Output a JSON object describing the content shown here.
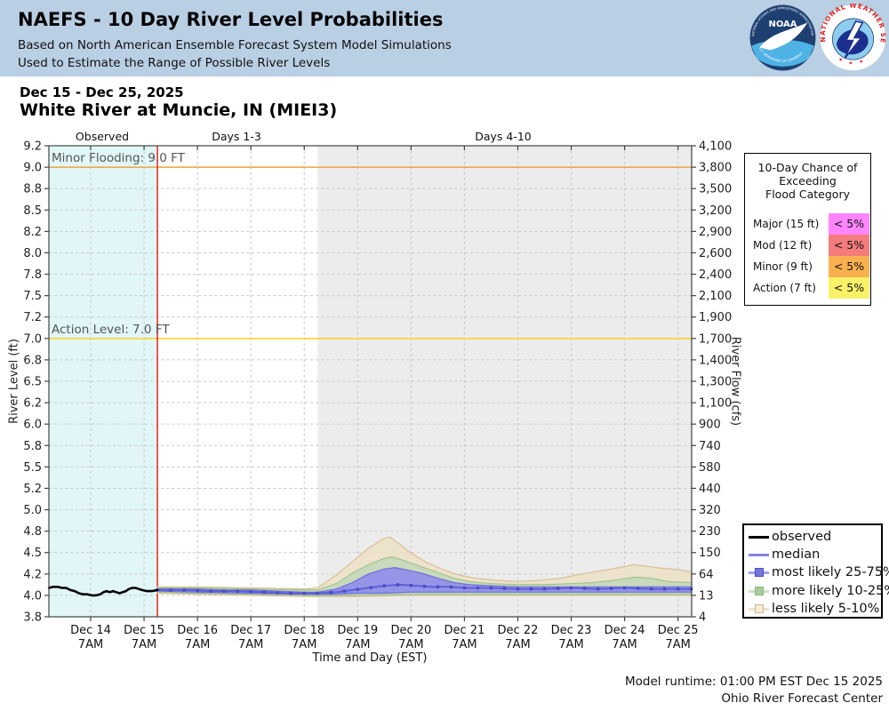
{
  "header": {
    "title": "NAEFS - 10 Day River Level Probabilities",
    "subtitle1": "Based on North American Ensemble Forecast System Model Simulations",
    "subtitle2": "Used to Estimate the Range of Possible River Levels",
    "bg_color": "#b9cfe4",
    "noaa_logo_text": "NOAA",
    "nws_logo_text": "NATIONAL WEATHER SERVICE"
  },
  "page": {
    "date_range": "Dec 15 - Dec 25, 2025",
    "station_title": "White River at Muncie, IN (MIEI3)"
  },
  "footer": {
    "line1": "Model runtime: 01:00 PM EST Dec 15 2025",
    "line2": "Ohio River Forecast Center"
  },
  "flood_legend": {
    "title_lines": [
      "10-Day Chance of",
      "Exceeding",
      "Flood Category"
    ],
    "rows": [
      {
        "label": "Major (15 ft)",
        "value": "< 5%",
        "color": "#ff85ff"
      },
      {
        "label": "Mod (12 ft)",
        "value": "< 5%",
        "color": "#f47c7c"
      },
      {
        "label": "Minor (9 ft)",
        "value": "< 5%",
        "color": "#f9b04e"
      },
      {
        "label": "Action (7 ft)",
        "value": "< 5%",
        "color": "#faf169"
      }
    ]
  },
  "series_legend": [
    {
      "label": "observed",
      "type": "line",
      "line": "#000000"
    },
    {
      "label": "median",
      "type": "line",
      "line": "#8585e2"
    },
    {
      "label": "most likely 25-75%",
      "type": "band",
      "line": "#a2a2ec",
      "fill": "#7575de",
      "border": "#4d4dbb"
    },
    {
      "label": "more likely 10-25%",
      "type": "band",
      "line": "#cfe0c6",
      "fill": "#a8cc9c",
      "border": "#8bb87e"
    },
    {
      "label": "less likely 5-10%",
      "type": "band",
      "line": "#eee2cb",
      "fill": "#f5ecda",
      "border": "#cfb691"
    }
  ],
  "chart_data": {
    "type": "area",
    "title": "White River at Muncie, IN (MIEI3)",
    "xlabel": "Time and Day (EST)",
    "left_axis": {
      "label": "River Level (ft)",
      "ticks": [
        9.2,
        9.0,
        8.8,
        8.5,
        8.2,
        8.0,
        7.8,
        7.5,
        7.2,
        7.0,
        6.8,
        6.5,
        6.2,
        6.0,
        5.8,
        5.5,
        5.2,
        5.0,
        4.8,
        4.5,
        4.2,
        4.0,
        3.8
      ]
    },
    "right_axis": {
      "label": "River Flow (cfs)",
      "ticks": [
        "4,100",
        "3,800",
        "3,500",
        "3,200",
        "2,900",
        "2,600",
        "2,400",
        "2,100",
        "1,900",
        "1,700",
        "1,400",
        "1,300",
        "1,100",
        "900",
        "740",
        "580",
        "440",
        "320",
        "230",
        "150",
        "64",
        "13",
        "4"
      ]
    },
    "x_axis": {
      "day_labels": [
        "Dec 14",
        "Dec 15",
        "Dec 16",
        "Dec 17",
        "Dec 18",
        "Dec 19",
        "Dec 20",
        "Dec 21",
        "Dec 22",
        "Dec 23",
        "Dec 24",
        "Dec 25"
      ],
      "sub_label": "7AM",
      "range_days": [
        -0.783,
        11.255
      ]
    },
    "regions": [
      {
        "label": "Observed",
        "start": -0.783,
        "end": 1.25,
        "color": "#e1f6f7"
      },
      {
        "label": "Days 1-3",
        "start": 1.25,
        "end": 4.25,
        "color": "#ffffff"
      },
      {
        "label": "Days 4-10",
        "start": 4.25,
        "end": 11.255,
        "color": "#ececec"
      }
    ],
    "reference_lines": [
      {
        "label": "Minor Flooding: 9.0 FT",
        "value": 9.0,
        "color": "#f0a23e"
      },
      {
        "label": "Action Level: 7.0 FT",
        "value": 7.0,
        "color": "#fdd220"
      }
    ],
    "forecast_line": {
      "day": 1.25,
      "color": "#f03126"
    },
    "series": {
      "observed": {
        "color": "#000000",
        "points": [
          [
            -0.78,
            4.07
          ],
          [
            -0.7,
            4.08
          ],
          [
            -0.62,
            4.08
          ],
          [
            -0.54,
            4.07
          ],
          [
            -0.46,
            4.07
          ],
          [
            -0.38,
            4.05
          ],
          [
            -0.3,
            4.04
          ],
          [
            -0.22,
            4.02
          ],
          [
            -0.14,
            4.01
          ],
          [
            -0.06,
            4.01
          ],
          [
            0.02,
            4.0
          ],
          [
            0.1,
            4.0
          ],
          [
            0.18,
            4.01
          ],
          [
            0.24,
            4.03
          ],
          [
            0.3,
            4.04
          ],
          [
            0.36,
            4.03
          ],
          [
            0.42,
            4.04
          ],
          [
            0.48,
            4.03
          ],
          [
            0.54,
            4.02
          ],
          [
            0.6,
            4.03
          ],
          [
            0.66,
            4.04
          ],
          [
            0.72,
            4.06
          ],
          [
            0.78,
            4.07
          ],
          [
            0.84,
            4.07
          ],
          [
            0.9,
            4.06
          ],
          [
            0.96,
            4.05
          ],
          [
            1.05,
            4.04
          ],
          [
            1.15,
            4.04
          ],
          [
            1.25,
            4.05
          ]
        ]
      },
      "median": {
        "color": "#5f5fd4",
        "points": [
          [
            1.25,
            4.05
          ],
          [
            1.75,
            4.05
          ],
          [
            2.25,
            4.04
          ],
          [
            2.75,
            4.04
          ],
          [
            3.25,
            4.03
          ],
          [
            3.75,
            4.02
          ],
          [
            4.25,
            4.02
          ],
          [
            4.6,
            4.03
          ],
          [
            4.9,
            4.05
          ],
          [
            5.2,
            4.07
          ],
          [
            5.5,
            4.09
          ],
          [
            5.8,
            4.1
          ],
          [
            6.1,
            4.09
          ],
          [
            6.4,
            4.08
          ],
          [
            6.7,
            4.08
          ],
          [
            7.0,
            4.07
          ],
          [
            7.5,
            4.07
          ],
          [
            8.0,
            4.06
          ],
          [
            8.5,
            4.06
          ],
          [
            9.0,
            4.07
          ],
          [
            9.5,
            4.06
          ],
          [
            10.0,
            4.07
          ],
          [
            10.5,
            4.06
          ],
          [
            11.0,
            4.06
          ],
          [
            11.25,
            4.06
          ]
        ]
      },
      "bands": [
        {
          "name": "less likely 5-10%",
          "fill": "#ede1c9",
          "edge": "#d9c094",
          "upper": [
            [
              1.25,
              4.08
            ],
            [
              2.0,
              4.08
            ],
            [
              3.0,
              4.07
            ],
            [
              4.0,
              4.06
            ],
            [
              4.25,
              4.07
            ],
            [
              4.6,
              4.19
            ],
            [
              4.9,
              4.37
            ],
            [
              5.2,
              4.56
            ],
            [
              5.45,
              4.68
            ],
            [
              5.6,
              4.72
            ],
            [
              5.8,
              4.61
            ],
            [
              6.0,
              4.49
            ],
            [
              6.3,
              4.36
            ],
            [
              6.6,
              4.26
            ],
            [
              6.9,
              4.19
            ],
            [
              7.2,
              4.16
            ],
            [
              7.6,
              4.14
            ],
            [
              8.0,
              4.13
            ],
            [
              8.4,
              4.14
            ],
            [
              8.8,
              4.16
            ],
            [
              9.2,
              4.2
            ],
            [
              9.6,
              4.25
            ],
            [
              9.9,
              4.29
            ],
            [
              10.15,
              4.33
            ],
            [
              10.4,
              4.31
            ],
            [
              10.7,
              4.28
            ],
            [
              11.0,
              4.26
            ],
            [
              11.25,
              4.23
            ]
          ],
          "lower": [
            [
              1.25,
              4.02
            ],
            [
              2.0,
              4.01
            ],
            [
              3.0,
              4.0
            ],
            [
              4.0,
              3.99
            ],
            [
              5.0,
              3.99
            ],
            [
              6.0,
              4.0
            ],
            [
              7.0,
              4.0
            ],
            [
              8.0,
              4.0
            ],
            [
              9.0,
              4.0
            ],
            [
              10.0,
              4.0
            ],
            [
              11.25,
              4.0
            ]
          ]
        },
        {
          "name": "more likely 10-25%",
          "fill": "#c6d9bb",
          "edge": "#9dc58f",
          "upper": [
            [
              1.25,
              4.07
            ],
            [
              2.0,
              4.07
            ],
            [
              3.0,
              4.06
            ],
            [
              4.0,
              4.05
            ],
            [
              4.25,
              4.05
            ],
            [
              4.6,
              4.11
            ],
            [
              4.9,
              4.21
            ],
            [
              5.2,
              4.33
            ],
            [
              5.5,
              4.42
            ],
            [
              5.65,
              4.44
            ],
            [
              5.9,
              4.38
            ],
            [
              6.2,
              4.3
            ],
            [
              6.5,
              4.22
            ],
            [
              6.8,
              4.16
            ],
            [
              7.1,
              4.13
            ],
            [
              7.5,
              4.11
            ],
            [
              8.0,
              4.1
            ],
            [
              8.5,
              4.1
            ],
            [
              9.0,
              4.11
            ],
            [
              9.4,
              4.12
            ],
            [
              9.8,
              4.14
            ],
            [
              10.2,
              4.17
            ],
            [
              10.5,
              4.16
            ],
            [
              10.8,
              4.13
            ],
            [
              11.25,
              4.12
            ]
          ],
          "lower": [
            [
              1.25,
              4.03
            ],
            [
              2.0,
              4.02
            ],
            [
              3.0,
              4.01
            ],
            [
              4.0,
              4.0
            ],
            [
              5.0,
              4.0
            ],
            [
              6.0,
              4.01
            ],
            [
              7.0,
              4.01
            ],
            [
              8.0,
              4.01
            ],
            [
              9.0,
              4.01
            ],
            [
              10.0,
              4.01
            ],
            [
              11.25,
              4.01
            ]
          ]
        },
        {
          "name": "most likely 25-75%",
          "fill": "#8f8fea",
          "edge": "#6f6fd8",
          "upper": [
            [
              1.25,
              4.06
            ],
            [
              2.0,
              4.06
            ],
            [
              2.5,
              4.05
            ],
            [
              3.0,
              4.05
            ],
            [
              3.5,
              4.04
            ],
            [
              4.0,
              4.03
            ],
            [
              4.25,
              4.03
            ],
            [
              4.6,
              4.06
            ],
            [
              4.9,
              4.12
            ],
            [
              5.2,
              4.2
            ],
            [
              5.5,
              4.27
            ],
            [
              5.7,
              4.29
            ],
            [
              5.9,
              4.26
            ],
            [
              6.2,
              4.21
            ],
            [
              6.5,
              4.16
            ],
            [
              6.8,
              4.12
            ],
            [
              7.1,
              4.1
            ],
            [
              7.5,
              4.09
            ],
            [
              8.0,
              4.08
            ],
            [
              8.5,
              4.08
            ],
            [
              9.0,
              4.08
            ],
            [
              9.5,
              4.08
            ],
            [
              10.0,
              4.08
            ],
            [
              10.5,
              4.08
            ],
            [
              11.0,
              4.08
            ],
            [
              11.25,
              4.08
            ]
          ],
          "lower": [
            [
              1.25,
              4.04
            ],
            [
              2.0,
              4.03
            ],
            [
              3.0,
              4.02
            ],
            [
              4.0,
              4.01
            ],
            [
              4.5,
              4.01
            ],
            [
              5.0,
              4.02
            ],
            [
              5.5,
              4.02
            ],
            [
              6.0,
              4.03
            ],
            [
              6.5,
              4.03
            ],
            [
              7.0,
              4.03
            ],
            [
              8.0,
              4.03
            ],
            [
              9.0,
              4.03
            ],
            [
              10.0,
              4.03
            ],
            [
              11.25,
              4.03
            ]
          ]
        }
      ]
    }
  }
}
